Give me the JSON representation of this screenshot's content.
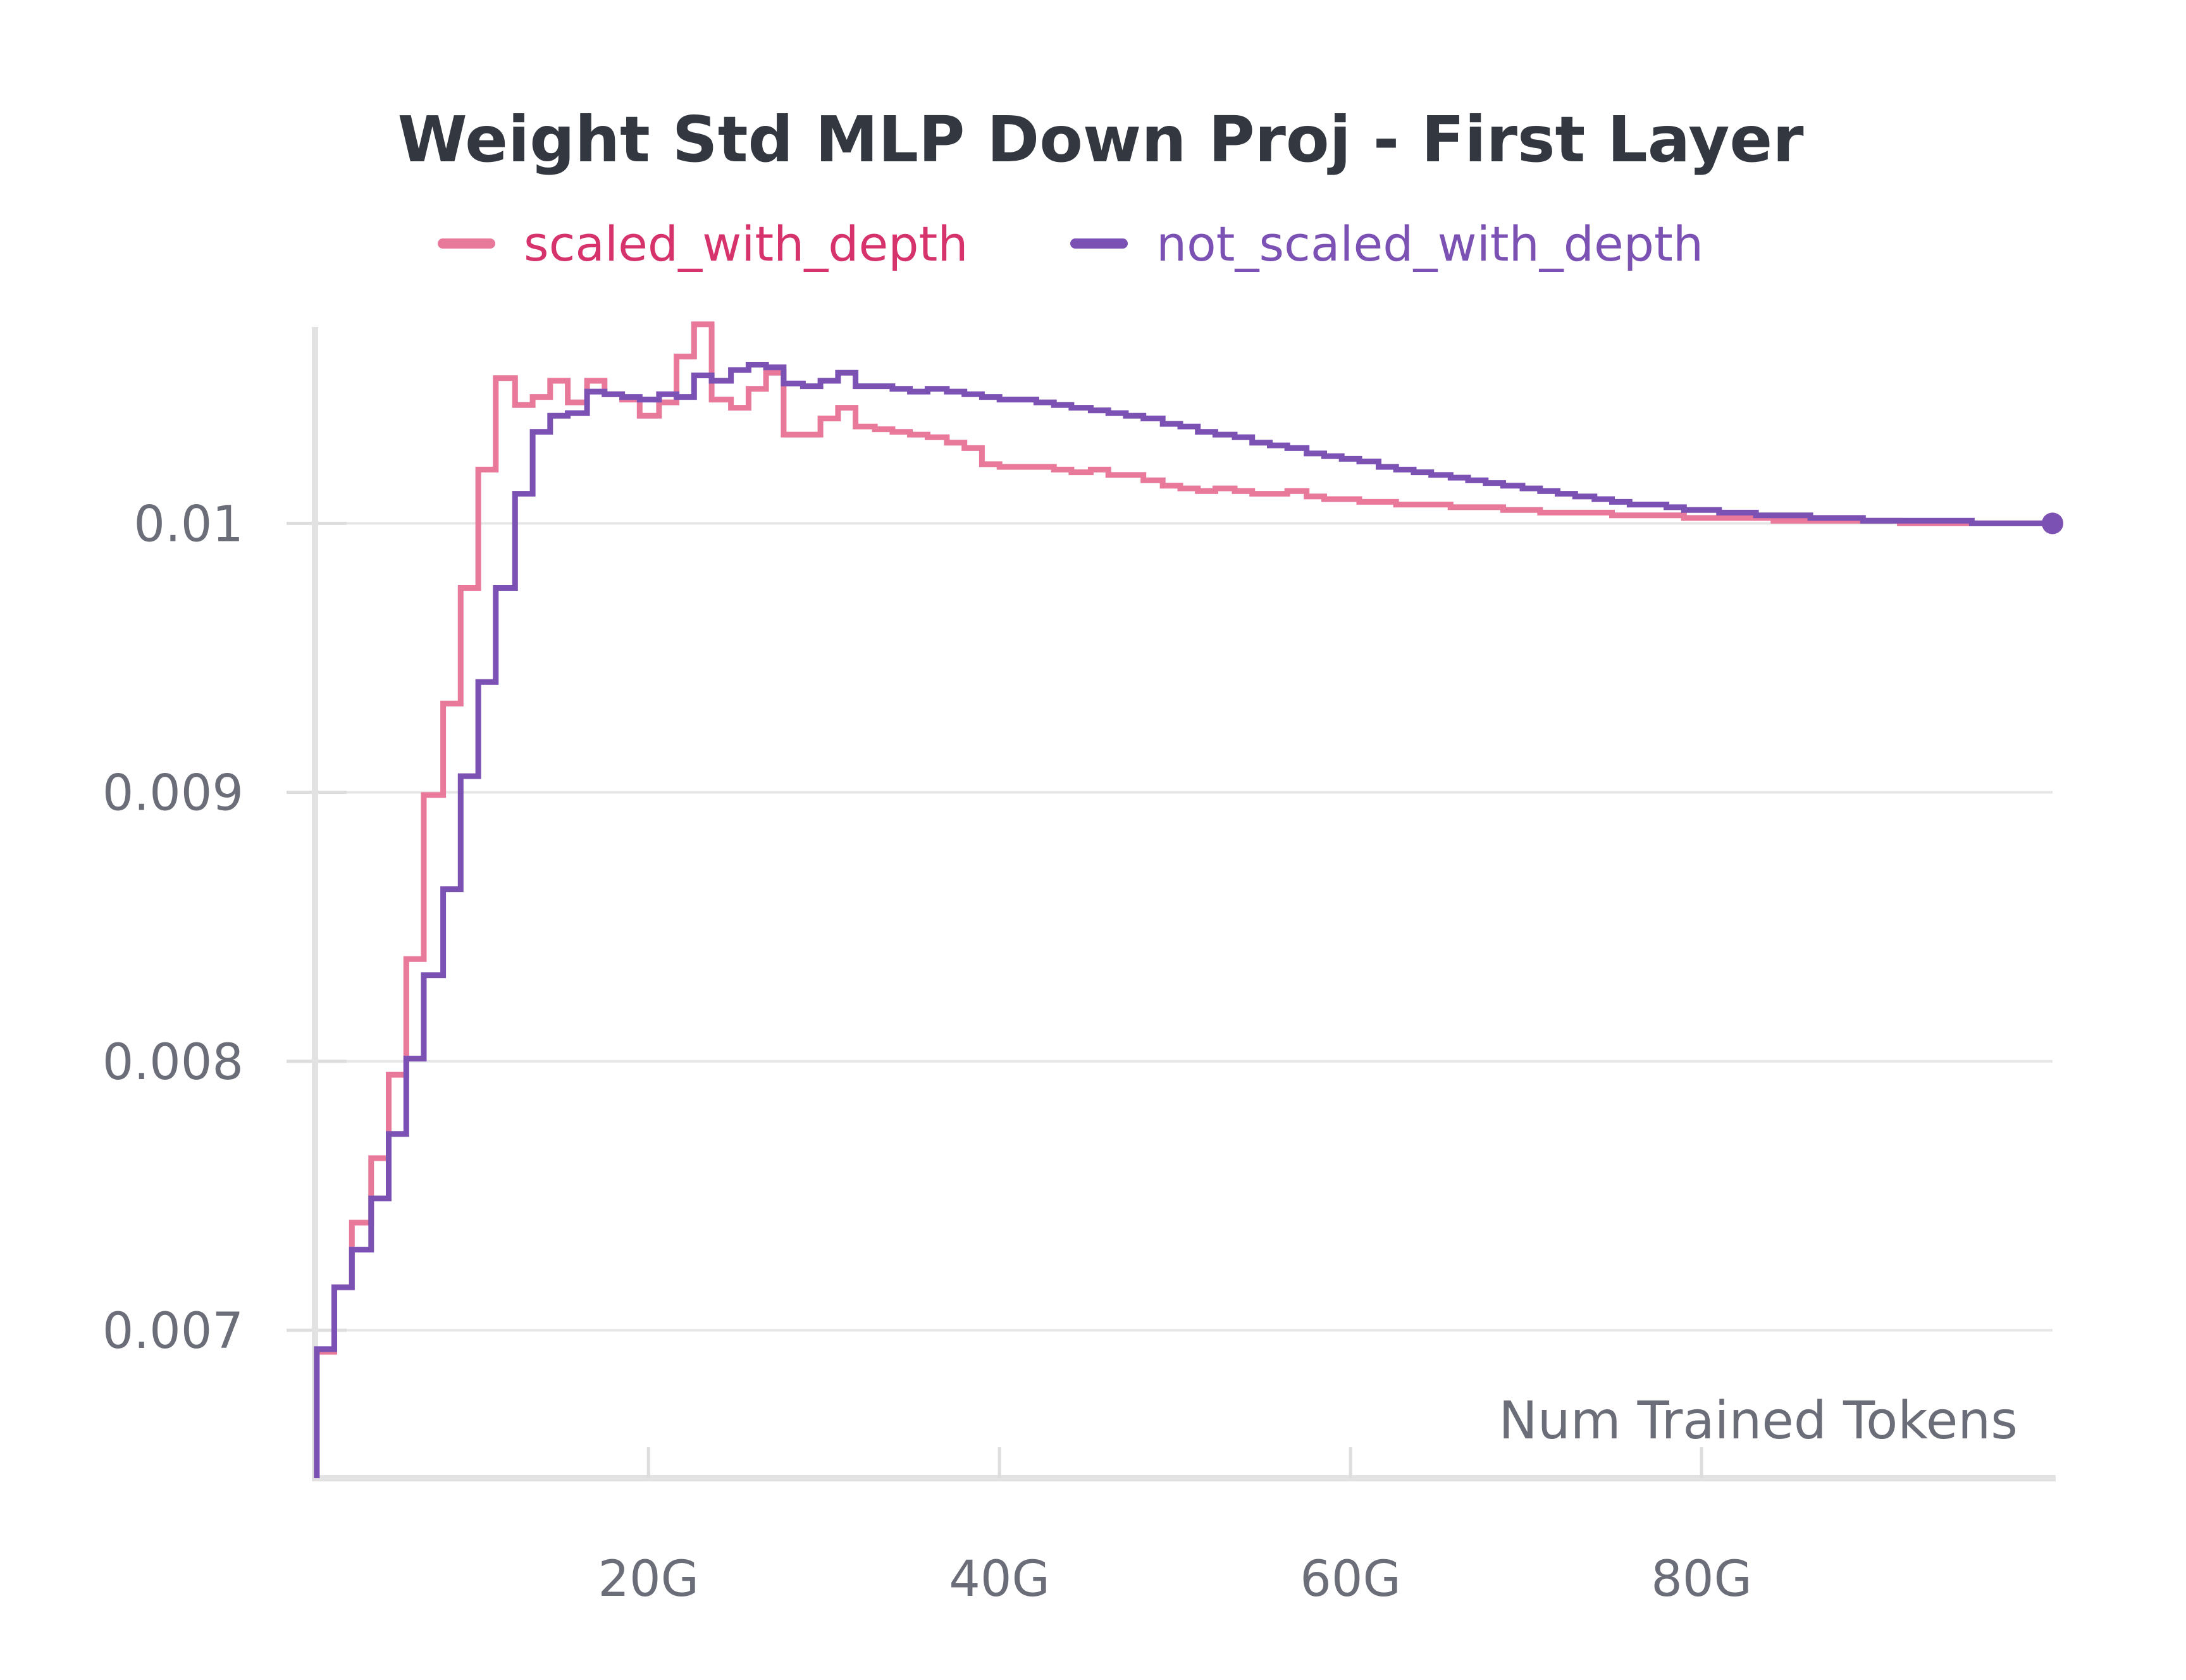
{
  "chart_data": {
    "type": "line",
    "step": true,
    "title": "Weight Std MLP Down Proj - First Layer",
    "xlabel": "Num Trained Tokens",
    "ylabel": "",
    "xlim": [
      1,
      100
    ],
    "ylim": [
      0.00645,
      0.01073
    ],
    "x_ticks": [
      {
        "value": 20,
        "label": "20G"
      },
      {
        "value": 40,
        "label": "40G"
      },
      {
        "value": 60,
        "label": "60G"
      },
      {
        "value": 80,
        "label": "80G"
      }
    ],
    "y_ticks": [
      {
        "value": 0.007,
        "label": "0.007"
      },
      {
        "value": 0.008,
        "label": "0.008"
      },
      {
        "value": 0.009,
        "label": "0.009"
      },
      {
        "value": 0.01,
        "label": "0.01"
      }
    ],
    "grid": true,
    "legend_position": "top-center",
    "series": [
      {
        "name": "scaled_with_depth",
        "color": "#e8799b",
        "legend_text_color": "#d6326b",
        "x": [
          1.1,
          2.1,
          3.1,
          4.2,
          5.2,
          6.2,
          7.2,
          8.3,
          9.3,
          10.3,
          11.3,
          12.4,
          13.4,
          14.4,
          15.4,
          16.5,
          17.5,
          18.5,
          19.5,
          20.6,
          21.6,
          22.6,
          23.6,
          24.7,
          25.7,
          26.7,
          27.7,
          28.8,
          29.8,
          30.8,
          31.8,
          32.9,
          33.9,
          34.9,
          35.9,
          37,
          38,
          39,
          40,
          41.1,
          42.1,
          43.1,
          44.1,
          45.2,
          46.2,
          47.2,
          48.2,
          49.3,
          50.3,
          51.3,
          52.3,
          53.4,
          54.4,
          55.4,
          56.4,
          57.5,
          58.5,
          59.5,
          60.5,
          61.6,
          62.6,
          63.6,
          64.6,
          65.7,
          66.7,
          67.7,
          68.7,
          69.8,
          70.8,
          71.8,
          72.8,
          73.9,
          74.9,
          75.9,
          76.9,
          78,
          79,
          80,
          81,
          82.1,
          83.1,
          84.1,
          85.1,
          86.2,
          87.2,
          88.2,
          89.2,
          90.3,
          91.3,
          92.3,
          93.3,
          94.4,
          95.4,
          96.4,
          97.4,
          98.5,
          99.5
        ],
        "values": [
          0.00692,
          0.00716,
          0.0074,
          0.00764,
          0.00795,
          0.00838,
          0.00899,
          0.00933,
          0.00976,
          0.0102,
          0.01054,
          0.01044,
          0.01047,
          0.01053,
          0.01045,
          0.01053,
          0.01048,
          0.01046,
          0.0104,
          0.01045,
          0.01062,
          0.01074,
          0.01046,
          0.01043,
          0.0105,
          0.01056,
          0.01033,
          0.01033,
          0.01039,
          0.01043,
          0.01036,
          0.01035,
          0.01034,
          0.01033,
          0.01032,
          0.0103,
          0.01028,
          0.01022,
          0.01021,
          0.01021,
          0.01021,
          0.0102,
          0.01019,
          0.0102,
          0.01018,
          0.01018,
          0.01016,
          0.01014,
          0.01013,
          0.01012,
          0.01013,
          0.01012,
          0.01011,
          0.01011,
          0.01012,
          0.0101,
          0.01009,
          0.01009,
          0.01008,
          0.01008,
          0.01007,
          0.01007,
          0.01007,
          0.01006,
          0.01006,
          0.01006,
          0.01005,
          0.01005,
          0.01004,
          0.01004,
          0.01004,
          0.01004,
          0.01003,
          0.01003,
          0.01003,
          0.01003,
          0.01002,
          0.01002,
          0.01002,
          0.01002,
          0.01002,
          0.01001,
          0.01001,
          0.01001,
          0.01001,
          0.01001,
          0.01001,
          0.01001,
          0.01,
          0.01,
          0.01,
          0.01,
          0.01,
          0.01,
          0.01,
          0.01,
          0.01
        ]
      },
      {
        "name": "not_scaled_with_depth",
        "color": "#7b51b4",
        "legend_text_color": "#7b51b4",
        "x": [
          1.1,
          2.1,
          3.1,
          4.2,
          5.2,
          6.2,
          7.2,
          8.3,
          9.3,
          10.3,
          11.3,
          12.4,
          13.4,
          14.4,
          15.4,
          16.5,
          17.5,
          18.5,
          19.5,
          20.6,
          21.6,
          22.6,
          23.6,
          24.7,
          25.7,
          26.7,
          27.7,
          28.8,
          29.8,
          30.8,
          31.8,
          32.9,
          33.9,
          34.9,
          35.9,
          37,
          38,
          39,
          40,
          41.1,
          42.1,
          43.1,
          44.1,
          45.2,
          46.2,
          47.2,
          48.2,
          49.3,
          50.3,
          51.3,
          52.3,
          53.4,
          54.4,
          55.4,
          56.4,
          57.5,
          58.5,
          59.5,
          60.5,
          61.6,
          62.6,
          63.6,
          64.6,
          65.7,
          66.7,
          67.7,
          68.7,
          69.8,
          70.8,
          71.8,
          72.8,
          73.9,
          74.9,
          75.9,
          76.9,
          78,
          79,
          80,
          81,
          82.1,
          83.1,
          84.1,
          85.1,
          86.2,
          87.2,
          88.2,
          89.2,
          90.3,
          91.3,
          92.3,
          93.3,
          94.4,
          95.4,
          96.4,
          97.4,
          98.5,
          99.5
        ],
        "values": [
          0.00693,
          0.00716,
          0.0073,
          0.00749,
          0.00773,
          0.00801,
          0.00832,
          0.00864,
          0.00906,
          0.00941,
          0.00976,
          0.01011,
          0.01034,
          0.0104,
          0.01041,
          0.01049,
          0.01048,
          0.01047,
          0.01046,
          0.01048,
          0.01047,
          0.01055,
          0.01053,
          0.01057,
          0.01059,
          0.01058,
          0.01052,
          0.01051,
          0.01053,
          0.01056,
          0.01051,
          0.01051,
          0.0105,
          0.01049,
          0.0105,
          0.01049,
          0.01048,
          0.01047,
          0.01046,
          0.01046,
          0.01045,
          0.01044,
          0.01043,
          0.01042,
          0.01041,
          0.0104,
          0.01039,
          0.01037,
          0.01036,
          0.01034,
          0.01033,
          0.01032,
          0.0103,
          0.01029,
          0.01028,
          0.01026,
          0.01025,
          0.01024,
          0.01023,
          0.01021,
          0.0102,
          0.01019,
          0.01018,
          0.01017,
          0.01016,
          0.01015,
          0.01014,
          0.01013,
          0.01012,
          0.01011,
          0.0101,
          0.01009,
          0.01008,
          0.01007,
          0.01007,
          0.01006,
          0.01005,
          0.01005,
          0.01004,
          0.01004,
          0.01003,
          0.01003,
          0.01003,
          0.01002,
          0.01002,
          0.01002,
          0.01001,
          0.01001,
          0.01001,
          0.01001,
          0.01001,
          0.01001,
          0.01,
          0.01,
          0.01,
          0.01,
          0.01
        ]
      }
    ]
  }
}
